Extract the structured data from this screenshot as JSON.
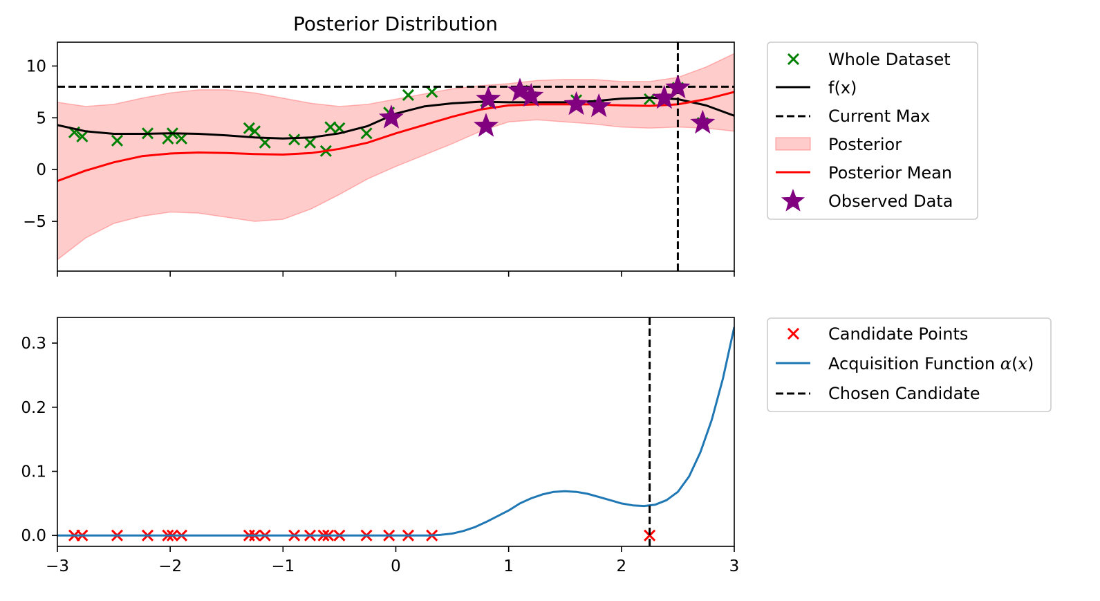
{
  "chart_data": [
    {
      "type": "line",
      "title": "Posterior Distribution",
      "xlim": [
        -3,
        3
      ],
      "ylim": [
        -9.8,
        12.3
      ],
      "x_ticks": [
        -3,
        -2,
        -1,
        0,
        1,
        2,
        3
      ],
      "x_tick_labels_shown": false,
      "y_ticks": [
        -5,
        0,
        5,
        10
      ],
      "y_tick_labels": [
        "−5",
        "0",
        "5",
        "10"
      ],
      "grid": false,
      "legend_position": "outside-right-top",
      "current_max": 8.0,
      "chosen_x": 2.5,
      "series": [
        {
          "name": "Whole Dataset",
          "kind": "scatter-x",
          "color": "#008000",
          "points": [
            [
              -2.85,
              3.6
            ],
            [
              -2.78,
              3.2
            ],
            [
              -2.47,
              2.8
            ],
            [
              -2.2,
              3.5
            ],
            [
              -2.02,
              3.0
            ],
            [
              -1.98,
              3.5
            ],
            [
              -1.9,
              3.0
            ],
            [
              -1.3,
              4.0
            ],
            [
              -1.25,
              3.7
            ],
            [
              -1.16,
              2.6
            ],
            [
              -0.9,
              2.9
            ],
            [
              -0.76,
              2.6
            ],
            [
              -0.62,
              1.8
            ],
            [
              -0.58,
              4.1
            ],
            [
              -0.5,
              4.0
            ],
            [
              -0.26,
              3.5
            ],
            [
              -0.06,
              5.5
            ],
            [
              0.11,
              7.2
            ],
            [
              0.32,
              7.5
            ],
            [
              0.8,
              6.6
            ],
            [
              1.12,
              7.6
            ],
            [
              1.2,
              7.0
            ],
            [
              1.6,
              6.7
            ],
            [
              1.8,
              6.2
            ],
            [
              2.25,
              6.8
            ],
            [
              2.38,
              6.8
            ],
            [
              2.5,
              7.9
            ],
            [
              2.72,
              4.5
            ]
          ]
        },
        {
          "name": "f(x)",
          "kind": "line",
          "color": "#000000",
          "x": [
            -3,
            -2.75,
            -2.5,
            -2.25,
            -2,
            -1.75,
            -1.5,
            -1.25,
            -1,
            -0.75,
            -0.5,
            -0.25,
            0,
            0.25,
            0.5,
            0.75,
            1,
            1.25,
            1.5,
            1.75,
            2,
            2.25,
            2.5,
            2.75,
            3
          ],
          "y": [
            4.3,
            3.7,
            3.45,
            3.45,
            3.5,
            3.45,
            3.3,
            3.1,
            3.0,
            3.1,
            3.5,
            4.2,
            5.4,
            6.1,
            6.4,
            6.55,
            6.5,
            6.5,
            6.5,
            6.6,
            6.85,
            6.95,
            6.8,
            6.2,
            5.2
          ]
        },
        {
          "name": "Posterior Mean",
          "kind": "line",
          "color": "#ff0000",
          "x": [
            -3,
            -2.75,
            -2.5,
            -2.25,
            -2,
            -1.75,
            -1.5,
            -1.25,
            -1,
            -0.75,
            -0.5,
            -0.25,
            0,
            0.25,
            0.5,
            0.75,
            1,
            1.25,
            1.5,
            1.75,
            2,
            2.25,
            2.5,
            2.75,
            3
          ],
          "y": [
            -1.1,
            -0.1,
            0.7,
            1.3,
            1.55,
            1.65,
            1.6,
            1.5,
            1.45,
            1.6,
            2.0,
            2.6,
            3.5,
            4.3,
            5.1,
            5.8,
            6.2,
            6.3,
            6.3,
            6.3,
            6.2,
            6.15,
            6.3,
            6.8,
            7.5
          ]
        },
        {
          "name": "Posterior",
          "kind": "band",
          "color": "#ff0000",
          "alpha": 0.2,
          "x": [
            -3,
            -2.75,
            -2.5,
            -2.25,
            -2,
            -1.75,
            -1.5,
            -1.25,
            -1,
            -0.75,
            -0.5,
            -0.25,
            0,
            0.25,
            0.5,
            0.75,
            1,
            1.25,
            1.5,
            1.75,
            2,
            2.25,
            2.5,
            2.75,
            3
          ],
          "lower": [
            -8.7,
            -6.6,
            -5.2,
            -4.5,
            -4.1,
            -4.2,
            -4.6,
            -5.0,
            -4.8,
            -3.8,
            -2.4,
            -0.9,
            0.3,
            1.4,
            2.5,
            3.7,
            4.6,
            4.8,
            4.6,
            4.4,
            4.1,
            4.0,
            4.1,
            4.0,
            3.7
          ],
          "upper": [
            6.5,
            6.1,
            6.3,
            6.9,
            7.4,
            7.7,
            7.7,
            7.4,
            6.9,
            6.4,
            6.1,
            6.3,
            6.8,
            7.3,
            7.8,
            8.1,
            8.3,
            8.6,
            8.7,
            8.7,
            8.5,
            8.5,
            8.9,
            9.9,
            11.2
          ]
        },
        {
          "name": "Observed Data",
          "kind": "scatter-star",
          "color": "#800080",
          "points": [
            [
              -0.04,
              5.0
            ],
            [
              0.8,
              4.2
            ],
            [
              0.82,
              6.8
            ],
            [
              1.1,
              7.6
            ],
            [
              1.2,
              7.1
            ],
            [
              1.6,
              6.3
            ],
            [
              1.8,
              6.1
            ],
            [
              2.38,
              6.9
            ],
            [
              2.5,
              7.9
            ],
            [
              2.72,
              4.5
            ]
          ]
        },
        {
          "name": "Current Max",
          "kind": "hline",
          "color": "#000000",
          "value": 8.0
        }
      ],
      "legend": [
        "Whole Dataset",
        "f(x)",
        "Current Max",
        "Posterior",
        "Posterior Mean",
        "Observed Data"
      ]
    },
    {
      "type": "line",
      "title": "",
      "xlim": [
        -3,
        3
      ],
      "ylim": [
        -0.017,
        0.34
      ],
      "x_ticks": [
        -3,
        -2,
        -1,
        0,
        1,
        2,
        3
      ],
      "x_tick_labels": [
        "−3",
        "−2",
        "−1",
        "0",
        "1",
        "2",
        "3"
      ],
      "y_ticks": [
        0.0,
        0.1,
        0.2,
        0.3
      ],
      "y_tick_labels": [
        "0.0",
        "0.1",
        "0.2",
        "0.3"
      ],
      "grid": false,
      "legend_position": "outside-right-top",
      "chosen_x": 2.25,
      "series": [
        {
          "name": "Candidate Points",
          "kind": "scatter-x",
          "color": "#ff0000",
          "points": [
            [
              -2.85,
              0
            ],
            [
              -2.78,
              0
            ],
            [
              -2.47,
              0
            ],
            [
              -2.2,
              0
            ],
            [
              -2.02,
              0
            ],
            [
              -1.98,
              0
            ],
            [
              -1.9,
              0
            ],
            [
              -1.3,
              0
            ],
            [
              -1.25,
              0
            ],
            [
              -1.16,
              0
            ],
            [
              -0.9,
              0
            ],
            [
              -0.76,
              0
            ],
            [
              -0.64,
              0
            ],
            [
              -0.6,
              0
            ],
            [
              -0.5,
              0
            ],
            [
              -0.26,
              0
            ],
            [
              -0.06,
              0
            ],
            [
              0.11,
              0
            ],
            [
              0.32,
              0
            ],
            [
              2.25,
              0
            ]
          ]
        },
        {
          "name": "Acquisition Function α(x)",
          "kind": "line",
          "color": "#1f77b4",
          "x": [
            -3,
            -2,
            -1,
            0,
            0.3,
            0.4,
            0.5,
            0.6,
            0.7,
            0.8,
            0.9,
            1.0,
            1.1,
            1.2,
            1.3,
            1.4,
            1.5,
            1.6,
            1.7,
            1.8,
            1.9,
            2.0,
            2.1,
            2.2,
            2.3,
            2.4,
            2.5,
            2.6,
            2.7,
            2.8,
            2.9,
            3.0
          ],
          "y": [
            0,
            0,
            0,
            0,
            0,
            0.001,
            0.003,
            0.007,
            0.013,
            0.021,
            0.03,
            0.039,
            0.05,
            0.058,
            0.064,
            0.068,
            0.069,
            0.068,
            0.065,
            0.06,
            0.055,
            0.05,
            0.047,
            0.046,
            0.048,
            0.055,
            0.068,
            0.092,
            0.13,
            0.18,
            0.245,
            0.325
          ]
        },
        {
          "name": "Chosen Candidate",
          "kind": "vline",
          "color": "#000000",
          "value": 2.25
        }
      ],
      "legend": [
        "Candidate Points",
        "Acquisition Function α(x)",
        "Chosen Candidate"
      ]
    }
  ],
  "legend_labels": {
    "top": [
      "Whole Dataset",
      "f(x)",
      "Current Max",
      "Posterior",
      "Posterior Mean",
      "Observed Data"
    ],
    "bottom_plain": [
      "Candidate Points",
      "Chosen Candidate"
    ],
    "acq_prefix": "Acquisition Function ",
    "acq_alpha": "α",
    "acq_open": "(",
    "acq_x": "x",
    "acq_close": ")"
  }
}
